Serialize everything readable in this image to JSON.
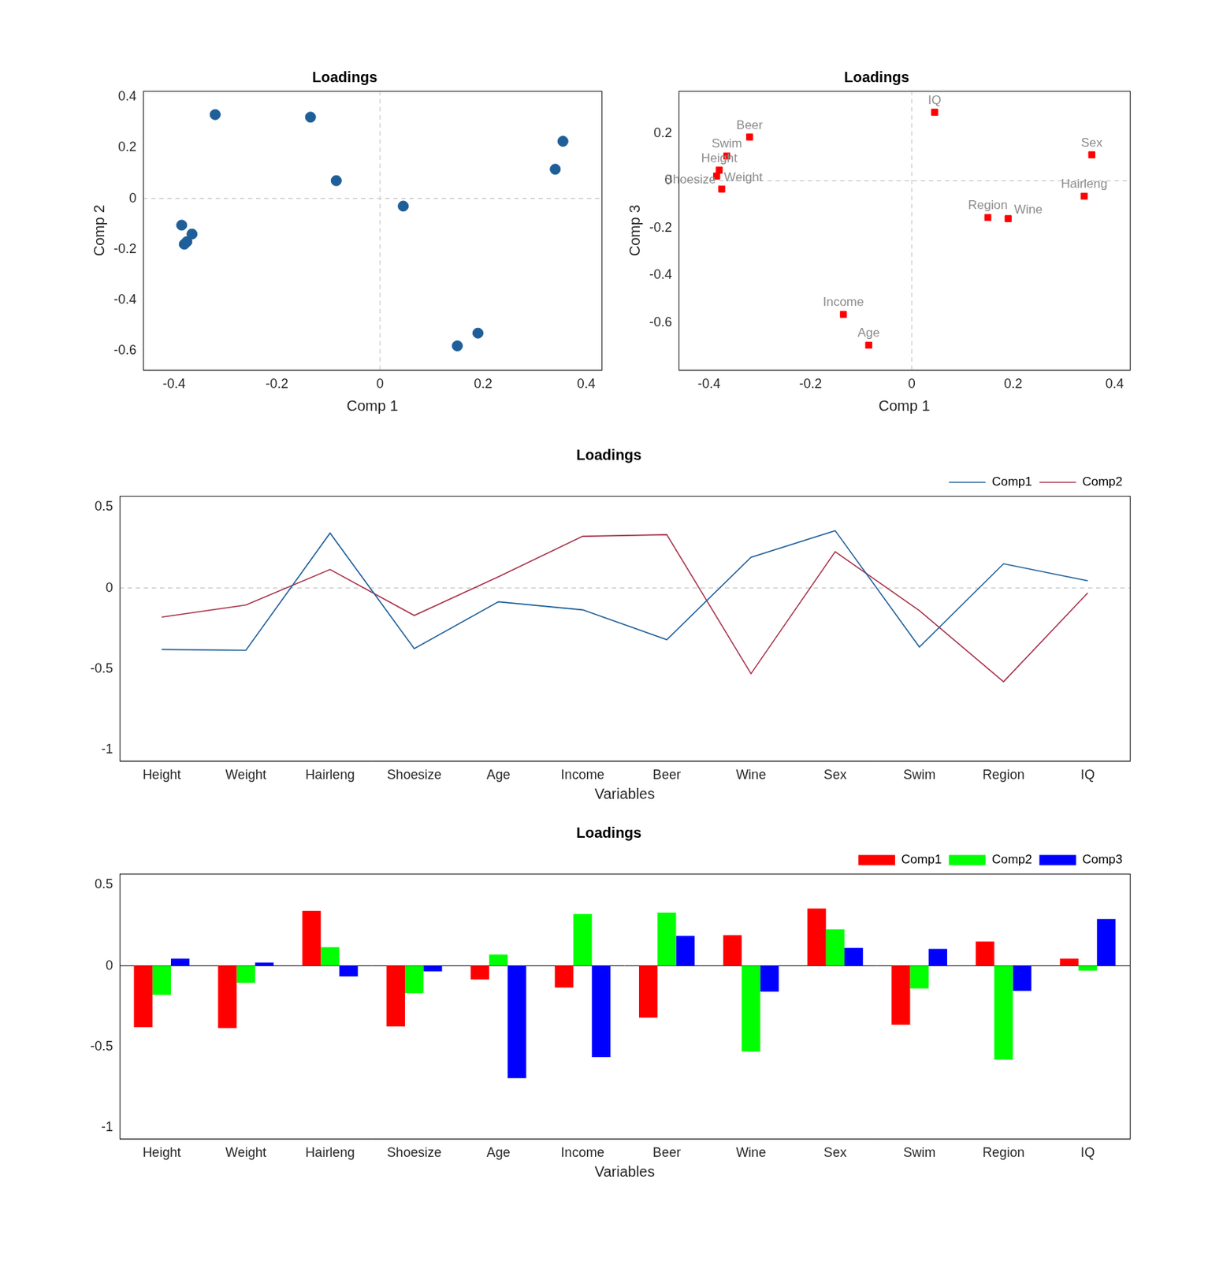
{
  "chart_data": [
    {
      "type": "scatter",
      "title": "Loadings",
      "x_label": "Comp 1",
      "y_label": "Comp 2",
      "x": [
        -0.38,
        -0.385,
        0.34,
        -0.375,
        -0.085,
        -0.135,
        -0.32,
        0.19,
        0.355,
        -0.365,
        0.15,
        0.045
      ],
      "y": [
        -0.18,
        -0.105,
        0.115,
        -0.17,
        0.07,
        0.32,
        0.33,
        -0.53,
        0.225,
        -0.14,
        -0.58,
        -0.03
      ],
      "color": "#1f5f99",
      "marker": "circle",
      "xlim": [
        -0.46,
        0.43
      ],
      "xticks": [
        -0.4,
        -0.2,
        0,
        0.2,
        0.4
      ],
      "ylim": [
        -0.675,
        0.423
      ],
      "yticks": [
        -0.6,
        -0.4,
        -0.2,
        0,
        0.2,
        0.4
      ]
    },
    {
      "type": "scatter",
      "title": "Loadings",
      "x_label": "Comp 1",
      "y_label": "Comp 3",
      "x": [
        -0.38,
        -0.385,
        0.34,
        -0.375,
        -0.085,
        -0.135,
        -0.32,
        0.19,
        0.355,
        -0.365,
        0.15,
        0.045
      ],
      "y": [
        0.045,
        0.02,
        -0.065,
        -0.035,
        -0.695,
        -0.565,
        0.185,
        -0.16,
        0.11,
        0.105,
        -0.155,
        0.29
      ],
      "point_labels": [
        "Height",
        "Weight",
        "Hairleng",
        "Shoesize",
        "Age",
        "Income",
        "Beer",
        "Wine",
        "Sex",
        "Swim",
        "Region",
        "IQ"
      ],
      "color": "#ff0000",
      "marker": "square",
      "xlim": [
        -0.46,
        0.43
      ],
      "xticks": [
        -0.4,
        -0.2,
        0,
        0.2,
        0.4
      ],
      "ylim": [
        -0.8,
        0.38
      ],
      "yticks": [
        -0.6,
        -0.4,
        -0.2,
        0,
        0.2
      ]
    },
    {
      "type": "line",
      "title": "Loadings",
      "x_label": "Variables",
      "categories": [
        "Height",
        "Weight",
        "Hairleng",
        "Shoesize",
        "Age",
        "Income",
        "Beer",
        "Wine",
        "Sex",
        "Swim",
        "Region",
        "IQ"
      ],
      "series": [
        {
          "name": "Comp1",
          "color": "#1f5f99",
          "values": [
            -0.38,
            -0.385,
            0.34,
            -0.375,
            -0.085,
            -0.135,
            -0.32,
            0.19,
            0.355,
            -0.365,
            0.15,
            0.045
          ]
        },
        {
          "name": "Comp2",
          "color": "#a8324a",
          "values": [
            -0.18,
            -0.105,
            0.115,
            -0.17,
            0.07,
            0.32,
            0.33,
            -0.53,
            0.225,
            -0.14,
            -0.58,
            -0.03
          ]
        }
      ],
      "legend": "top-right",
      "ylim": [
        -1.07,
        0.57
      ],
      "yticks": [
        -1,
        -0.5,
        0,
        0.5
      ]
    },
    {
      "type": "bar",
      "title": "Loadings",
      "x_label": "Variables",
      "categories": [
        "Height",
        "Weight",
        "Hairleng",
        "Shoesize",
        "Age",
        "Income",
        "Beer",
        "Wine",
        "Sex",
        "Swim",
        "Region",
        "IQ"
      ],
      "series": [
        {
          "name": "Comp1",
          "color": "#ff0000",
          "values": [
            -0.38,
            -0.385,
            0.34,
            -0.375,
            -0.085,
            -0.135,
            -0.32,
            0.19,
            0.355,
            -0.365,
            0.15,
            0.045
          ]
        },
        {
          "name": "Comp2",
          "color": "#00ff00",
          "values": [
            -0.18,
            -0.105,
            0.115,
            -0.17,
            0.07,
            0.32,
            0.33,
            -0.53,
            0.225,
            -0.14,
            -0.58,
            -0.03
          ]
        },
        {
          "name": "Comp3",
          "color": "#0000ff",
          "values": [
            0.045,
            0.02,
            -0.065,
            -0.035,
            -0.695,
            -0.565,
            0.185,
            -0.16,
            0.11,
            0.105,
            -0.155,
            0.29
          ]
        }
      ],
      "legend": "top-right",
      "ylim": [
        -1.07,
        0.57
      ],
      "yticks": [
        -1,
        -0.5,
        0,
        0.5
      ]
    }
  ]
}
